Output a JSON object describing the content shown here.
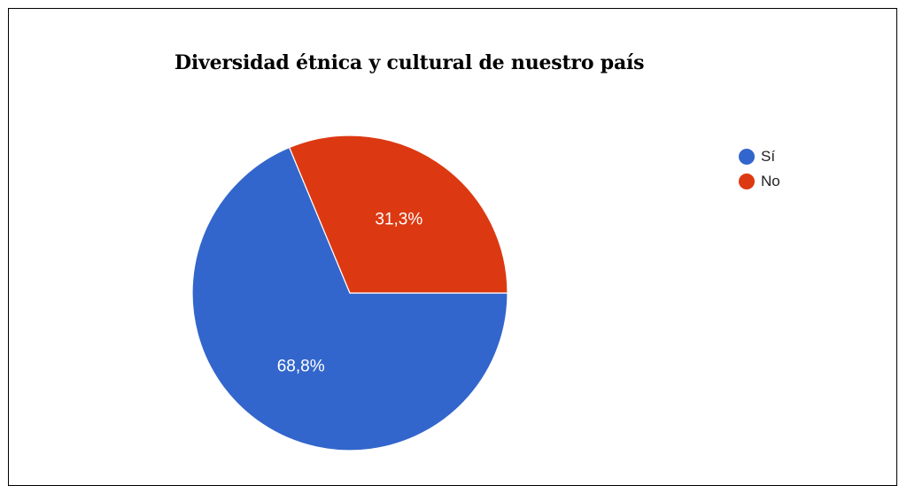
{
  "chart_data": {
    "type": "pie",
    "title": "Diversidad étnica y cultural de nuestro país",
    "categories": [
      "Sí",
      "No"
    ],
    "values": [
      68.8,
      31.3
    ],
    "data_labels": [
      "68,8%",
      "31,3%"
    ],
    "colors": [
      "#3366cc",
      "#dc3912"
    ],
    "legend_position": "right"
  }
}
